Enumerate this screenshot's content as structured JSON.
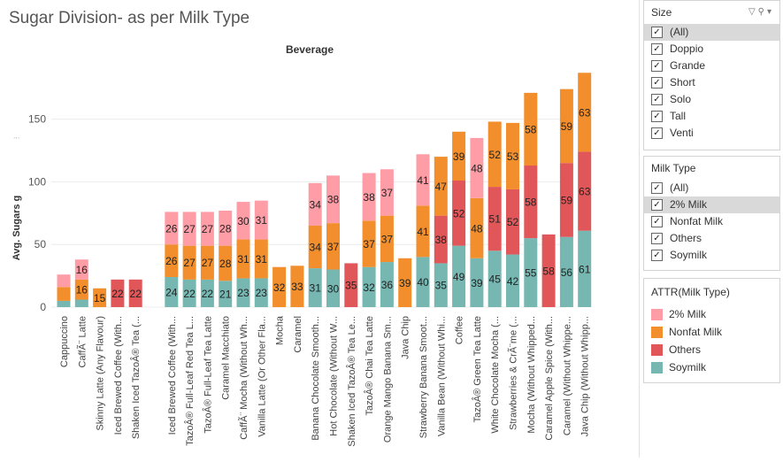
{
  "title": "Sugar Division- as per Milk Type",
  "chart_data": {
    "type": "bar",
    "stacked": true,
    "title": "Sugar Division- as per Milk Type",
    "column_header": "Beverage",
    "xlabel": "",
    "ylabel": "Avg. Sugars g",
    "ylim": [
      0,
      190
    ],
    "yticks": [
      0,
      50,
      100,
      150
    ],
    "grid": true,
    "legend_placement": "right",
    "series": [
      {
        "name": "Soymilk",
        "color": "#76b7b2",
        "values": [
          5,
          6,
          null,
          null,
          null,
          null,
          24,
          22,
          22,
          21,
          23,
          23,
          null,
          null,
          31,
          30,
          null,
          32,
          36,
          null,
          40,
          35,
          49,
          39,
          45,
          42,
          55,
          null,
          56,
          61
        ]
      },
      {
        "name": "Others",
        "color": "#e15759",
        "values": [
          null,
          null,
          null,
          22,
          22,
          null,
          null,
          null,
          null,
          null,
          null,
          null,
          null,
          null,
          null,
          null,
          35,
          null,
          null,
          null,
          null,
          38,
          52,
          null,
          51,
          52,
          58,
          58,
          59,
          63
        ]
      },
      {
        "name": "Nonfat Milk",
        "color": "#f28e2b",
        "values": [
          11,
          16,
          15,
          null,
          null,
          null,
          26,
          27,
          27,
          28,
          31,
          31,
          32,
          33,
          34,
          37,
          null,
          37,
          37,
          39,
          41,
          47,
          39,
          48,
          52,
          53,
          58,
          null,
          59,
          63
        ]
      },
      {
        "name": "2% Milk",
        "color": "#ff9da7",
        "values": [
          10,
          16,
          null,
          null,
          null,
          null,
          26,
          27,
          27,
          28,
          30,
          31,
          null,
          null,
          34,
          38,
          null,
          38,
          37,
          null,
          41,
          null,
          null,
          48,
          null,
          null,
          null,
          null,
          null,
          null
        ]
      }
    ],
    "data_labels": [
      [
        "",
        "",
        "",
        ""
      ],
      [
        "",
        "",
        "16",
        "16"
      ],
      [
        "",
        "",
        "15",
        ""
      ],
      [
        "",
        "22",
        "",
        ""
      ],
      [
        "",
        "22",
        "",
        ""
      ],
      [
        "",
        "",
        "",
        ""
      ],
      [
        "24",
        "",
        "26",
        "26"
      ],
      [
        "22",
        "",
        "27",
        "27"
      ],
      [
        "22",
        "",
        "27",
        "27"
      ],
      [
        "21",
        "",
        "28",
        "28"
      ],
      [
        "23",
        "",
        "31",
        "30"
      ],
      [
        "23",
        "",
        "31",
        "31"
      ],
      [
        "",
        "",
        "32",
        ""
      ],
      [
        "",
        "",
        "33",
        ""
      ],
      [
        "31",
        "",
        "34",
        "34"
      ],
      [
        "30",
        "",
        "37",
        "38"
      ],
      [
        "",
        "35",
        "",
        ""
      ],
      [
        "32",
        "",
        "37",
        "38"
      ],
      [
        "36",
        "",
        "37",
        "37"
      ],
      [
        "",
        "",
        "39",
        ""
      ],
      [
        "40",
        "",
        "41",
        "41"
      ],
      [
        "35",
        "38",
        "47",
        ""
      ],
      [
        "49",
        "52",
        "39",
        ""
      ],
      [
        "39",
        "",
        "48",
        "48"
      ],
      [
        "45",
        "51",
        "52",
        ""
      ],
      [
        "42",
        "52",
        "53",
        ""
      ],
      [
        "55",
        "58",
        "58",
        ""
      ],
      [
        "",
        "58",
        "",
        ""
      ],
      [
        "56",
        "59",
        "59",
        ""
      ],
      [
        "61",
        "63",
        "63",
        ""
      ]
    ],
    "categories": [
      "Cappuccino",
      "CaffÃ¨ Latte",
      "Skinny Latte (Any Flavour)",
      "Iced Brewed Coffee (With...",
      "Shaken Iced TazoÂ® Tea (...",
      "",
      "Iced Brewed Coffee (With...",
      "TazoÂ® Full-Leaf Red Tea L...",
      "TazoÂ® Full-Leaf Tea Latte",
      "Caramel Macchiato",
      "CaffÃ¨ Mocha (Without Wh...",
      "Vanilla Latte (Or Other Fla...",
      "Mocha",
      "Caramel",
      "Banana Chocolate Smooth...",
      "Hot Chocolate (Without W...",
      "Shaken Iced TazoÂ® Tea Le...",
      "TazoÂ® Chai Tea Latte",
      "Orange Mango Banana Sm...",
      "Java Chip",
      "Strawberry Banana Smoot...",
      "Vanilla Bean (Without Whi...",
      "Coffee",
      "TazoÂ® Green Tea Latte",
      "White Chocolate Mocha (...",
      "Strawberries & CrÃ¨me (...",
      "Mocha (Without Whipped...",
      "Caramel Apple Spice (With...",
      "Caramel (Without Whippe...",
      "Java Chip (Without Whipp..."
    ]
  },
  "filters": [
    {
      "title": "Size",
      "items": [
        {
          "label": "(All)",
          "checked": true,
          "selected": true
        },
        {
          "label": "Doppio",
          "checked": true
        },
        {
          "label": "Grande",
          "checked": true
        },
        {
          "label": "Short",
          "checked": true
        },
        {
          "label": "Solo",
          "checked": true
        },
        {
          "label": "Tall",
          "checked": true
        },
        {
          "label": "Venti",
          "checked": true
        }
      ]
    },
    {
      "title": "Milk Type",
      "items": [
        {
          "label": "(All)",
          "checked": true
        },
        {
          "label": "2% Milk",
          "checked": true,
          "selected": true
        },
        {
          "label": "Nonfat Milk",
          "checked": true
        },
        {
          "label": "Others",
          "checked": true
        },
        {
          "label": "Soymilk",
          "checked": true
        }
      ]
    }
  ],
  "legend": {
    "title": "ATTR(Milk Type)",
    "items": [
      {
        "label": "2% Milk",
        "color": "#ff9da7"
      },
      {
        "label": "Nonfat Milk",
        "color": "#f28e2b"
      },
      {
        "label": "Others",
        "color": "#e15759"
      },
      {
        "label": "Soymilk",
        "color": "#76b7b2"
      }
    ]
  },
  "icons": {
    "check": "check-icon",
    "filter": "filter-icon",
    "search": "search-icon",
    "menu": "dropdown-menu-icon"
  }
}
